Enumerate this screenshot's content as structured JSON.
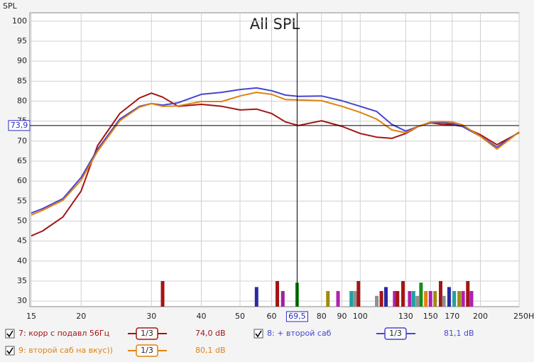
{
  "chart_data": {
    "type": "line",
    "title": "All SPL",
    "y_label": "SPL",
    "x_scale": "log",
    "grid": true,
    "xlim": [
      15,
      250
    ],
    "ylim": [
      28.6,
      102.1
    ],
    "xticks": [
      15,
      20,
      30,
      40,
      50,
      60,
      80,
      90,
      100,
      130,
      150,
      170,
      200,
      {
        "value": 250,
        "label": "250Hz"
      }
    ],
    "yticks": [
      30,
      35,
      40,
      45,
      50,
      55,
      60,
      65,
      70,
      75,
      80,
      85,
      90,
      95,
      100
    ],
    "cursor": {
      "x": {
        "value": 69.5,
        "label": "69,5"
      },
      "y": {
        "value": 73.9,
        "label": "73,9"
      }
    },
    "x": [
      15,
      16,
      18,
      20,
      22,
      25,
      28,
      30,
      32,
      35,
      40,
      45,
      50,
      55,
      60,
      65,
      70,
      80,
      90,
      100,
      110,
      120,
      130,
      140,
      150,
      160,
      170,
      180,
      200,
      220,
      250
    ],
    "series": [
      {
        "name": "7: корр с подавл 56Гц",
        "color": "#a31515",
        "smoothing": "1/3",
        "reading": {
          "value": 74.0,
          "label": "74,0 dB"
        },
        "values": [
          46.3,
          47.5,
          51,
          57.5,
          68.9,
          76.9,
          80.8,
          82,
          81,
          78.7,
          79.2,
          78.7,
          77.8,
          78,
          76.9,
          74.8,
          73.9,
          75.1,
          73.7,
          71.9,
          71,
          70.7,
          71.9,
          73.7,
          74.6,
          74.2,
          74.1,
          73.7,
          71.6,
          69.1,
          72.1
        ]
      },
      {
        "name": "8: + второй саб",
        "color": "#4646d0",
        "smoothing": "1/3",
        "reading": {
          "value": 81.1,
          "label": "81,1 dB"
        },
        "values": [
          52,
          53.1,
          55.6,
          60.9,
          68,
          75.5,
          78.7,
          79.4,
          79,
          79.6,
          81.7,
          82.2,
          82.9,
          83.3,
          82.6,
          81.5,
          81.2,
          81.3,
          80.1,
          78.7,
          77.4,
          74.2,
          72.5,
          73.7,
          74.6,
          74.6,
          74.4,
          73.7,
          71.2,
          68.5,
          72.3
        ]
      },
      {
        "name": "9: второй саб на вкус))",
        "color": "#e0820f",
        "smoothing": "1/3",
        "reading": {
          "value": 80.1,
          "label": "80,1 dB"
        },
        "values": [
          51.5,
          52.7,
          55.2,
          60.2,
          67.5,
          75.1,
          78.5,
          79.4,
          78.7,
          78.8,
          79.9,
          79.9,
          81.3,
          82.2,
          81.7,
          80.4,
          80.3,
          80.1,
          78.7,
          77.2,
          75.5,
          72.8,
          72.1,
          73.7,
          74.8,
          74.9,
          74.8,
          74.1,
          71.2,
          68,
          72.3
        ]
      }
    ],
    "markers": {
      "x": [
        32,
        55,
        62,
        64,
        69.5,
        83,
        88,
        95,
        97,
        99,
        110,
        113,
        116,
        122,
        124,
        128,
        133,
        136,
        139,
        142,
        146,
        150,
        154,
        159,
        162,
        167,
        172,
        177,
        181,
        186,
        190
      ],
      "values": [
        35,
        33.5,
        35,
        32.5,
        34.6,
        32.5,
        32.5,
        32.5,
        32.5,
        35,
        31.3,
        32.5,
        33.5,
        32.5,
        32.5,
        35,
        32.5,
        32.5,
        31.3,
        34.6,
        32.5,
        32.5,
        32.5,
        35,
        31.3,
        33.5,
        32.5,
        32.5,
        32.5,
        35,
        32.5
      ],
      "colors": [
        "#a31515",
        "#2a2aa0",
        "#a31515",
        "#a020a0",
        "#1a8a1a",
        "#a08a10",
        "#b020b0",
        "#20a0a0",
        "#909090",
        "#a31515",
        "#909090",
        "#a31515",
        "#2a2aa0",
        "#b020b0",
        "#a31515",
        "#a31515",
        "#b020b0",
        "#20a0a0",
        "#909090",
        "#1a8a1a",
        "#e0820f",
        "#b020b0",
        "#a08a10",
        "#a31515",
        "#909090",
        "#2a2aa0",
        "#20a0a0",
        "#a08a10",
        "#b020b0",
        "#a31515",
        "#b020b0"
      ]
    }
  }
}
